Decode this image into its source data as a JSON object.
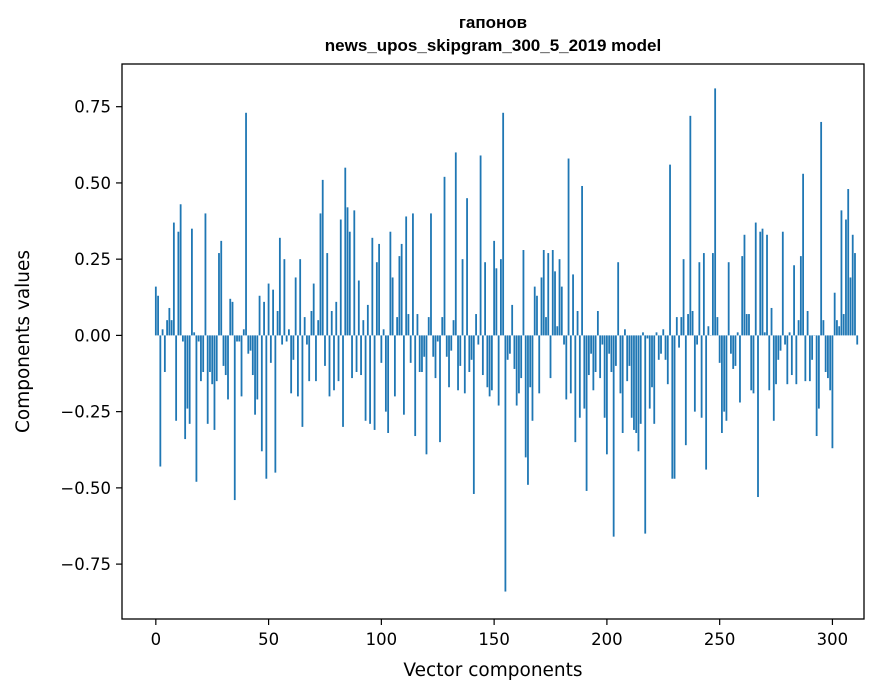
{
  "chart_data": {
    "type": "bar",
    "title": "гапонов",
    "subtitle": "news_upos_skipgram_300_5_2019 model",
    "xlabel": "Vector components",
    "ylabel": "Components values",
    "xlim": [
      -15,
      314
    ],
    "ylim": [
      -0.93,
      0.89
    ],
    "xticks": [
      0,
      50,
      100,
      150,
      200,
      250,
      300
    ],
    "yticks": [
      -0.75,
      -0.5,
      -0.25,
      0.0,
      0.25,
      0.5,
      0.75
    ],
    "ytick_labels": [
      "−0.75",
      "−0.50",
      "−0.25",
      "0.00",
      "0.25",
      "0.50",
      "0.75"
    ],
    "bar_color": "#1f77b4",
    "values": [
      0.16,
      0.13,
      -0.43,
      0.02,
      -0.12,
      0.05,
      0.09,
      0.05,
      0.37,
      -0.28,
      0.34,
      0.43,
      -0.02,
      -0.34,
      -0.24,
      -0.29,
      0.35,
      0.01,
      -0.48,
      -0.02,
      -0.15,
      -0.12,
      0.4,
      -0.29,
      -0.12,
      -0.16,
      -0.31,
      -0.15,
      0.27,
      0.31,
      -0.1,
      -0.13,
      -0.21,
      0.12,
      0.11,
      -0.54,
      -0.02,
      -0.02,
      -0.2,
      0.02,
      0.73,
      -0.06,
      -0.05,
      -0.13,
      -0.26,
      -0.21,
      0.13,
      -0.38,
      0.11,
      -0.47,
      0.17,
      -0.09,
      0.15,
      -0.45,
      0.08,
      0.32,
      -0.03,
      0.25,
      -0.02,
      0.02,
      -0.19,
      -0.08,
      0.19,
      -0.2,
      0.25,
      -0.3,
      0.06,
      -0.03,
      -0.15,
      0.08,
      0.17,
      -0.15,
      0.05,
      0.4,
      0.51,
      -0.1,
      0.27,
      -0.2,
      0.08,
      -0.18,
      0.11,
      -0.15,
      0.38,
      -0.3,
      0.55,
      0.42,
      0.34,
      -0.14,
      0.41,
      -0.12,
      0.18,
      -0.13,
      0.05,
      -0.28,
      0.1,
      -0.29,
      0.32,
      -0.31,
      0.24,
      0.3,
      -0.09,
      0.02,
      -0.25,
      -0.32,
      0.34,
      0.19,
      -0.2,
      0.06,
      0.26,
      0.3,
      -0.26,
      0.39,
      0.07,
      -0.09,
      0.4,
      -0.33,
      0.07,
      -0.12,
      -0.12,
      -0.07,
      -0.39,
      0.06,
      0.4,
      -0.07,
      -0.14,
      -0.02,
      -0.35,
      0.06,
      0.52,
      -0.07,
      -0.17,
      -0.05,
      0.05,
      0.6,
      -0.18,
      -0.1,
      0.25,
      -0.19,
      0.45,
      -0.12,
      -0.08,
      -0.52,
      0.07,
      -0.03,
      0.59,
      -0.13,
      0.24,
      -0.17,
      -0.2,
      -0.18,
      0.31,
      0.22,
      -0.23,
      0.25,
      0.73,
      -0.84,
      -0.08,
      -0.06,
      0.1,
      -0.11,
      -0.23,
      -0.19,
      -0.14,
      0.28,
      -0.4,
      -0.49,
      -0.17,
      -0.28,
      0.16,
      0.13,
      -0.19,
      0.19,
      0.28,
      0.06,
      0.27,
      -0.14,
      0.28,
      0.21,
      0.03,
      0.25,
      0.16,
      -0.03,
      -0.21,
      0.58,
      -0.19,
      0.2,
      -0.35,
      0.08,
      -0.27,
      0.49,
      -0.24,
      -0.51,
      -0.13,
      -0.06,
      -0.18,
      -0.12,
      0.08,
      -0.14,
      -0.03,
      -0.27,
      -0.39,
      -0.06,
      -0.12,
      -0.66,
      -0.1,
      0.24,
      -0.19,
      -0.32,
      0.02,
      -0.15,
      -0.1,
      -0.27,
      -0.31,
      -0.32,
      -0.38,
      -0.29,
      0.01,
      -0.65,
      -0.01,
      -0.24,
      -0.17,
      -0.29,
      0.01,
      -0.08,
      -0.06,
      0.02,
      -0.08,
      -0.16,
      0.56,
      -0.47,
      -0.47,
      0.06,
      -0.04,
      0.06,
      0.25,
      -0.36,
      0.07,
      0.72,
      0.08,
      -0.25,
      -0.03,
      0.24,
      -0.27,
      0.27,
      -0.44,
      0.03,
      0.0,
      0.27,
      0.81,
      0.06,
      -0.09,
      -0.32,
      -0.25,
      -0.28,
      0.24,
      -0.06,
      -0.11,
      -0.1,
      0.01,
      -0.22,
      0.26,
      0.33,
      0.07,
      0.07,
      -0.18,
      -0.19,
      0.37,
      -0.53,
      0.34,
      0.35,
      0.01,
      0.33,
      -0.18,
      0.09,
      -0.28,
      -0.16,
      -0.08,
      -0.05,
      0.34,
      -0.03,
      -0.16,
      0.01,
      -0.13,
      0.23,
      -0.16,
      0.05,
      0.26,
      0.53,
      -0.15,
      0.08,
      -0.15,
      -0.08,
      0.0,
      -0.33,
      -0.24,
      0.7,
      0.05,
      -0.12,
      -0.14,
      -0.18,
      -0.37,
      0.14,
      0.05,
      0.03,
      0.41,
      0.07,
      0.38,
      0.48,
      0.19,
      0.33,
      0.27,
      -0.03
    ]
  }
}
